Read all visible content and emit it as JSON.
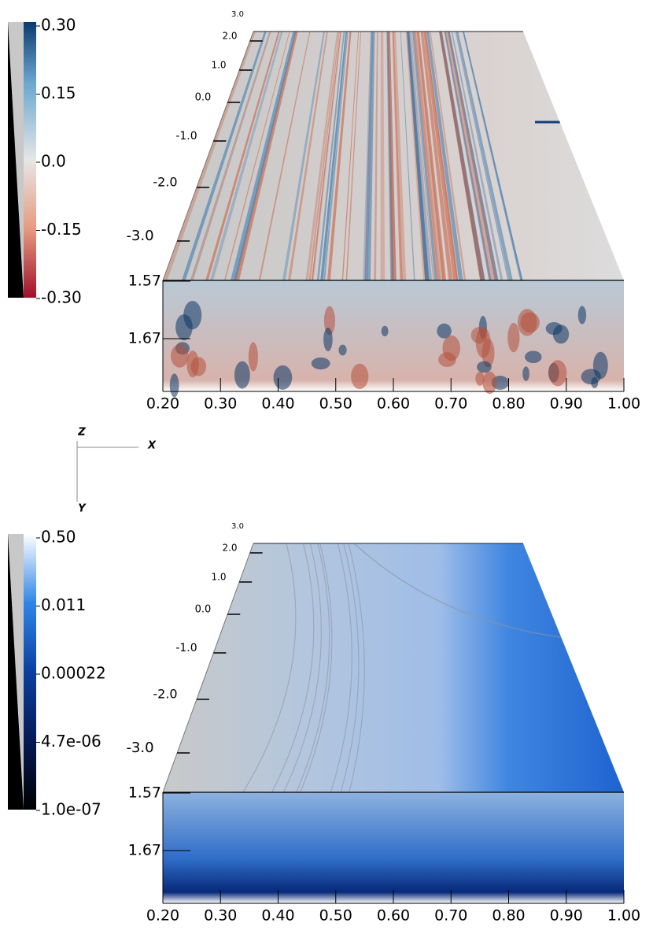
{
  "panels": [
    {
      "colorbar": {
        "labels": [
          "0.30",
          "0.15",
          "0.0",
          "-0.15",
          "-0.30"
        ]
      },
      "z_axis": {
        "labels": [
          "3.0",
          "2.0",
          "1.0",
          "0.0",
          "-1.0",
          "-2.0",
          "-3.0"
        ]
      },
      "y_axis": {
        "labels": [
          "1.57",
          "1.67"
        ]
      },
      "x_axis": {
        "labels": [
          "0.20",
          "0.30",
          "0.40",
          "0.50",
          "0.60",
          "0.70",
          "0.80",
          "0.90",
          "1.00"
        ]
      }
    },
    {
      "colorbar": {
        "labels": [
          "0.50",
          "0.011",
          "0.00022",
          "4.7e-06",
          "1.0e-07"
        ]
      },
      "z_axis": {
        "labels": [
          "3.0",
          "2.0",
          "1.0",
          "0.0",
          "-1.0",
          "-2.0",
          "-3.0"
        ]
      },
      "y_axis": {
        "labels": [
          "1.57",
          "1.67"
        ]
      },
      "x_axis": {
        "labels": [
          "0.20",
          "0.30",
          "0.40",
          "0.50",
          "0.60",
          "0.70",
          "0.80",
          "0.90",
          "1.00"
        ]
      }
    }
  ],
  "orientation": {
    "z": "Z",
    "x": "X",
    "y": "Y"
  }
}
